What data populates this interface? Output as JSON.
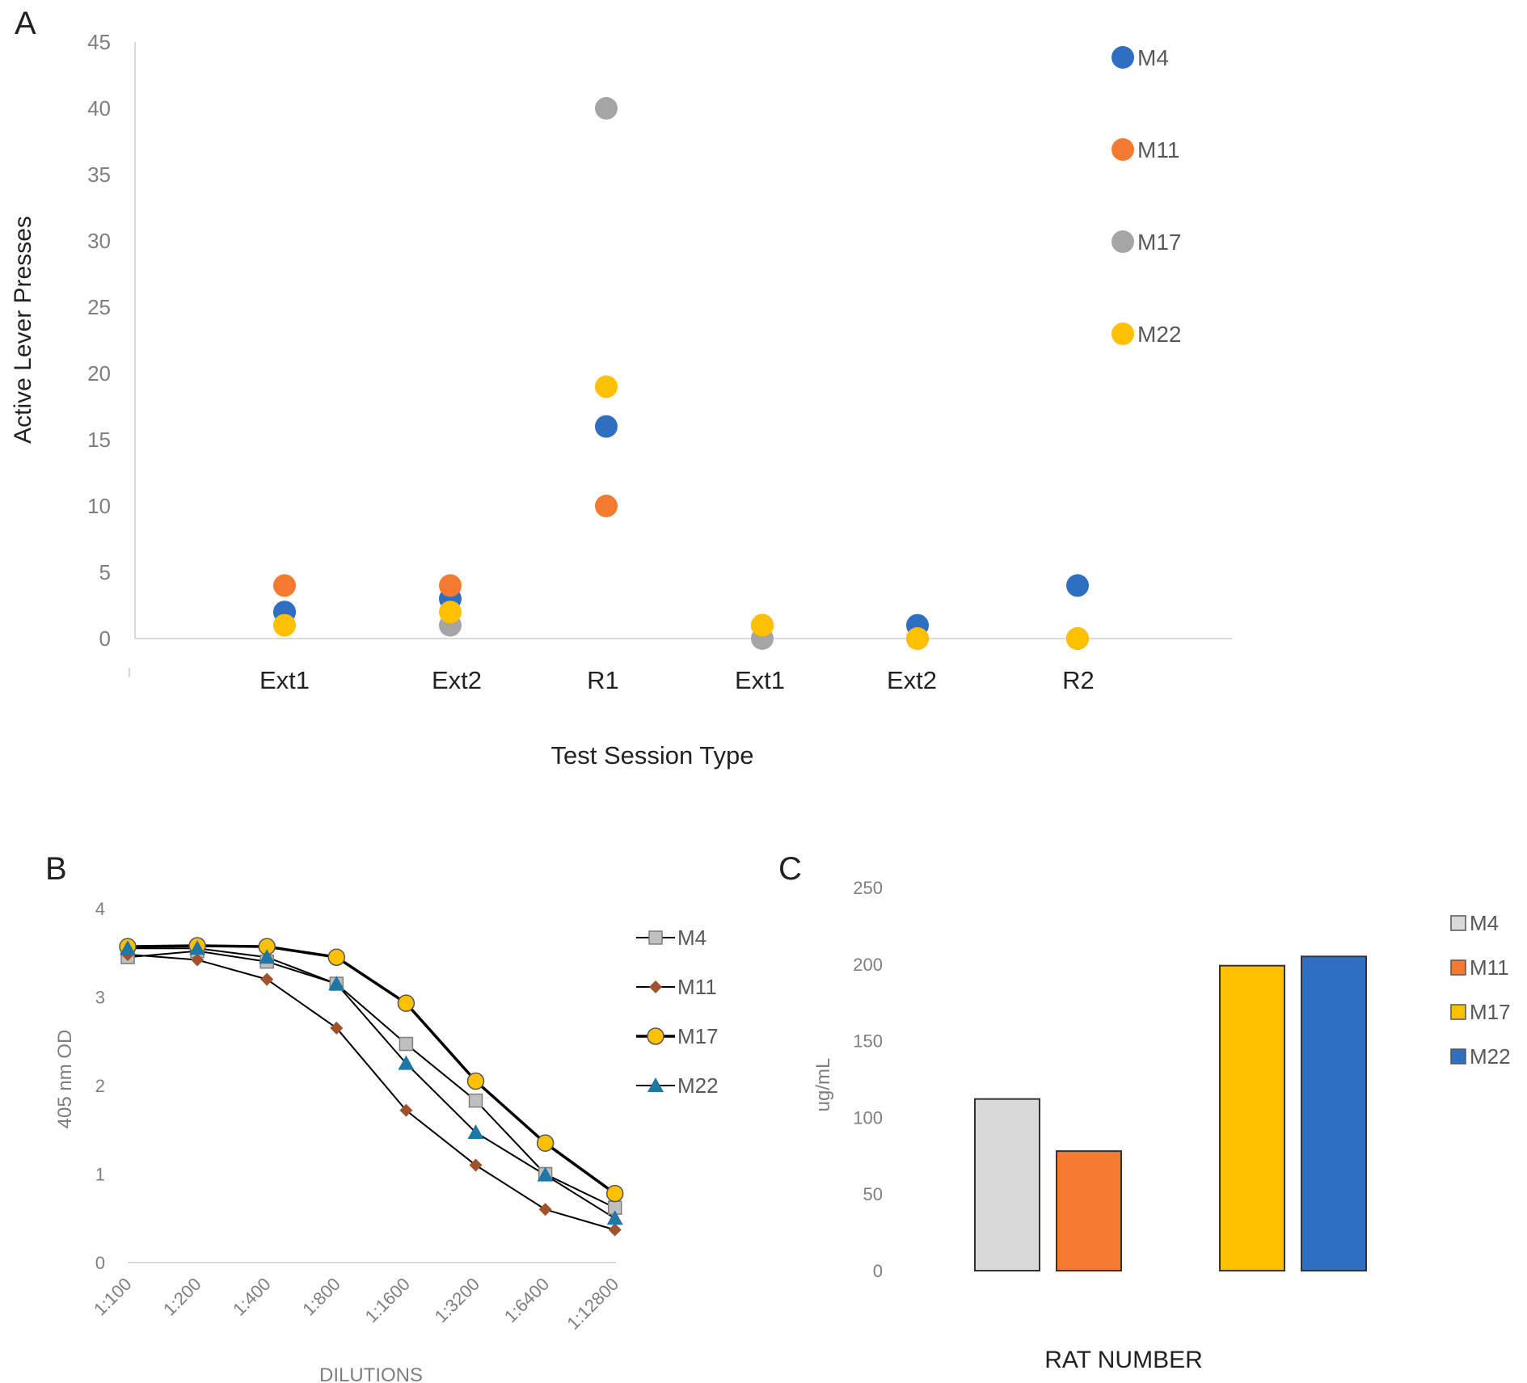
{
  "figure": {
    "panel_labels": [
      "A",
      "B",
      "C"
    ]
  },
  "chart_data": [
    {
      "panel": "A",
      "type": "scatter",
      "title": "",
      "xlabel": "Test Session Type",
      "ylabel": "Active Lever Presses",
      "categories": [
        "Ext1",
        "Ext2",
        "R1",
        "Ext1",
        "Ext2",
        "R2"
      ],
      "ylim": [
        0,
        45
      ],
      "yticks": [
        "0",
        "5",
        "10",
        "15",
        "20",
        "25",
        "30",
        "35",
        "40",
        "45"
      ],
      "grid": false,
      "legend_position": "top-right",
      "series": [
        {
          "name": "M4",
          "color": "#2E6FC2",
          "values": [
            2,
            3,
            16,
            1,
            1,
            4
          ]
        },
        {
          "name": "M11",
          "color": "#F47A32",
          "values": [
            4,
            4,
            10,
            1,
            0,
            0
          ]
        },
        {
          "name": "M17",
          "color": "#A5A5A5",
          "values": [
            2,
            1,
            40,
            0,
            0,
            0
          ]
        },
        {
          "name": "M22",
          "color": "#FFC000",
          "values": [
            1,
            2,
            19,
            1,
            0,
            0
          ]
        }
      ]
    },
    {
      "panel": "B",
      "type": "line",
      "title": "",
      "xlabel": "DILUTIONS",
      "ylabel": "405 nm OD",
      "categories": [
        "1:100",
        "1:200",
        "1:400",
        "1:800",
        "1:1600",
        "1:3200",
        "1:6400",
        "1:12800"
      ],
      "ylim": [
        0,
        4
      ],
      "yticks": [
        "0",
        "1",
        "2",
        "3",
        "4"
      ],
      "grid": false,
      "legend_position": "top-right",
      "series": [
        {
          "name": "M4",
          "marker": "square",
          "color": "#BFBFBF",
          "values": [
            3.45,
            3.52,
            3.4,
            3.15,
            2.47,
            1.83,
            1.0,
            0.62
          ]
        },
        {
          "name": "M11",
          "marker": "diamond",
          "color": "#A0522D",
          "values": [
            3.48,
            3.42,
            3.2,
            2.65,
            1.72,
            1.1,
            0.6,
            0.37
          ]
        },
        {
          "name": "M17",
          "marker": "circle",
          "color": "#FFC000",
          "values": [
            3.57,
            3.58,
            3.57,
            3.45,
            2.93,
            2.05,
            1.35,
            0.78
          ]
        },
        {
          "name": "M22",
          "marker": "triangle",
          "color": "#1F77A8",
          "values": [
            3.55,
            3.55,
            3.45,
            3.15,
            2.25,
            1.47,
            0.99,
            0.5
          ]
        }
      ]
    },
    {
      "panel": "C",
      "type": "bar",
      "title": "",
      "xlabel": "RAT NUMBER",
      "ylabel": "ug/mL",
      "categories": [
        "M4",
        "M11",
        "M17",
        "M22"
      ],
      "ylim": [
        0,
        250
      ],
      "yticks": [
        "0",
        "50",
        "100",
        "150",
        "200",
        "250"
      ],
      "grid": false,
      "legend_position": "top-right",
      "series": [
        {
          "name": "M4",
          "color": "#D9D9D9",
          "value": 112
        },
        {
          "name": "M11",
          "color": "#F47A32",
          "value": 78
        },
        {
          "name": "M17",
          "color": "#FFC000",
          "value": 199
        },
        {
          "name": "M22",
          "color": "#2E6FC2",
          "value": 205
        }
      ]
    }
  ]
}
